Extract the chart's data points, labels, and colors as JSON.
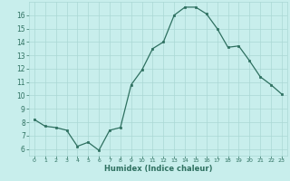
{
  "xlabel": "Humidex (Indice chaleur)",
  "x": [
    0,
    1,
    2,
    3,
    4,
    5,
    6,
    7,
    8,
    9,
    10,
    11,
    12,
    13,
    14,
    15,
    16,
    17,
    18,
    19,
    20,
    21,
    22,
    23
  ],
  "y": [
    8.2,
    7.7,
    7.6,
    7.4,
    6.2,
    6.5,
    5.9,
    7.4,
    7.6,
    10.8,
    11.9,
    13.5,
    14.0,
    16.0,
    16.6,
    16.6,
    16.1,
    15.0,
    13.6,
    13.7,
    12.6,
    11.4,
    10.8,
    10.1
  ],
  "line_color": "#2e7060",
  "marker_color": "#2e7060",
  "bg_color": "#c8eeec",
  "grid_color": "#aad8d4",
  "tick_label_color": "#2e7060",
  "axis_label_color": "#2e7060",
  "ylim": [
    5.5,
    17.0
  ],
  "xlim": [
    -0.5,
    23.5
  ],
  "yticks": [
    6,
    7,
    8,
    9,
    10,
    11,
    12,
    13,
    14,
    15,
    16
  ],
  "xticks": [
    0,
    1,
    2,
    3,
    4,
    5,
    6,
    7,
    8,
    9,
    10,
    11,
    12,
    13,
    14,
    15,
    16,
    17,
    18,
    19,
    20,
    21,
    22,
    23
  ]
}
